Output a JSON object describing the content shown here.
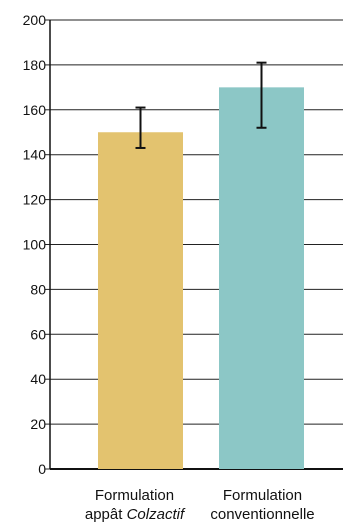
{
  "chart_data": {
    "type": "bar",
    "title": "",
    "xlabel": "",
    "ylabel": "",
    "ylim": [
      0,
      200
    ],
    "yticks": [
      0,
      20,
      40,
      60,
      80,
      100,
      120,
      140,
      160,
      180,
      200
    ],
    "grid": true,
    "categories": [
      {
        "lines": [
          [
            {
              "t": "Formulation"
            }
          ],
          [
            {
              "t": "appât "
            },
            {
              "t": "Colzactif",
              "italic": true
            }
          ]
        ]
      },
      {
        "lines": [
          [
            {
              "t": "Formulation"
            }
          ],
          [
            {
              "t": "conventionnelle"
            }
          ]
        ]
      }
    ],
    "values": [
      150,
      170
    ],
    "errors": [
      {
        "low": 143,
        "high": 161
      },
      {
        "low": 152,
        "high": 181
      }
    ],
    "colors": [
      "#e3c36f",
      "#8cc7c6"
    ]
  }
}
